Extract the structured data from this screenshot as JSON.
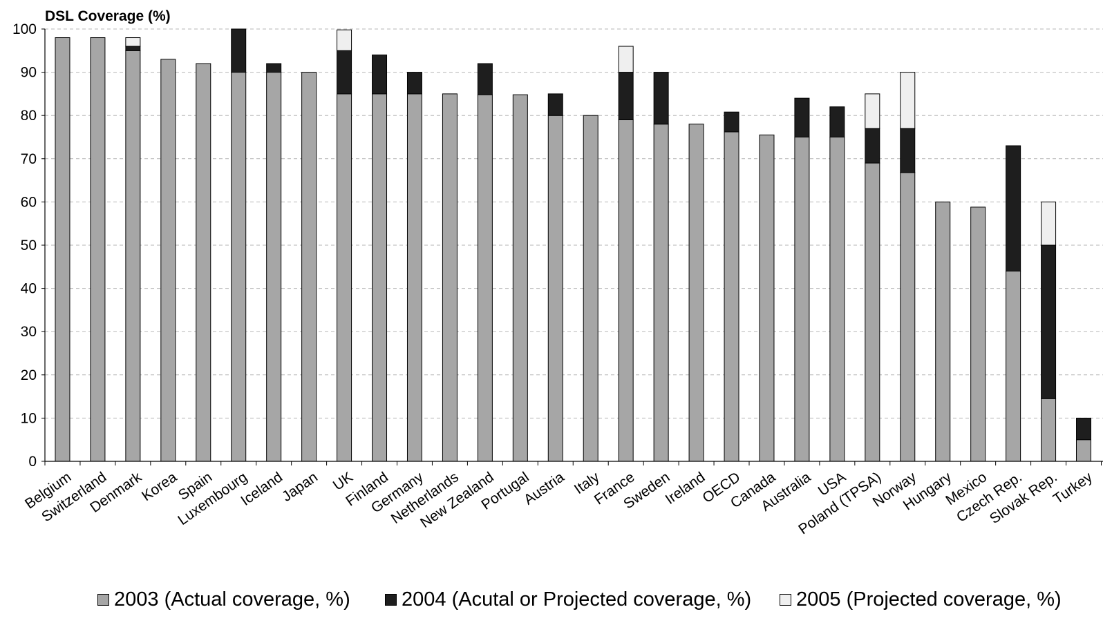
{
  "chart_data": {
    "type": "bar",
    "stacked": true,
    "ylabel": "DSL Coverage (%)",
    "ylim": [
      0,
      100
    ],
    "yticks": [
      0,
      10,
      20,
      30,
      40,
      50,
      60,
      70,
      80,
      90,
      100
    ],
    "grid": "horizontal dashed",
    "legend_position": "bottom",
    "categories": [
      "Belgium",
      "Switzerland",
      "Denmark",
      "Korea",
      "Spain",
      "Luxembourg",
      "Iceland",
      "Japan",
      "UK",
      "Finland",
      "Germany",
      "Netherlands",
      "New Zealand",
      "Portugal",
      "Austria",
      "Italy",
      "France",
      "Sweden",
      "Ireland",
      "OECD",
      "Canada",
      "Australia",
      "USA",
      "Poland (TPSA)",
      "Norway",
      "Hungary",
      "Mexico",
      "Czech Rep.",
      "Slovak Rep.",
      "Turkey"
    ],
    "series": [
      {
        "name": "2003 (Actual coverage, %)",
        "color": "#a6a6a6",
        "values": [
          98,
          98,
          95,
          93,
          92,
          90,
          90,
          90,
          85,
          85,
          85,
          85,
          84.8,
          84.8,
          80,
          80,
          79,
          78,
          78,
          76.2,
          75.5,
          75,
          75,
          69,
          66.8,
          60,
          58.8,
          44,
          14.5,
          5
        ]
      },
      {
        "name": "2004 (Acutal or Projected coverage, %)",
        "color": "#1e1e1e",
        "values": [
          0,
          0,
          1,
          0,
          0,
          10,
          2,
          0,
          10,
          9,
          5,
          0,
          7.2,
          0,
          5,
          0,
          11,
          12,
          0,
          4.6,
          0,
          9,
          7,
          8,
          10.2,
          0,
          0,
          29,
          35.5,
          5
        ]
      },
      {
        "name": "2005 (Projected coverage, %)",
        "color": "#efefef",
        "values": [
          0,
          0,
          2,
          0,
          0,
          0,
          0,
          0,
          4.8,
          0,
          0,
          0,
          0,
          0,
          0,
          0,
          6,
          0,
          0,
          0,
          0,
          0,
          0,
          8,
          13,
          0,
          0,
          0,
          10,
          0
        ]
      }
    ]
  }
}
